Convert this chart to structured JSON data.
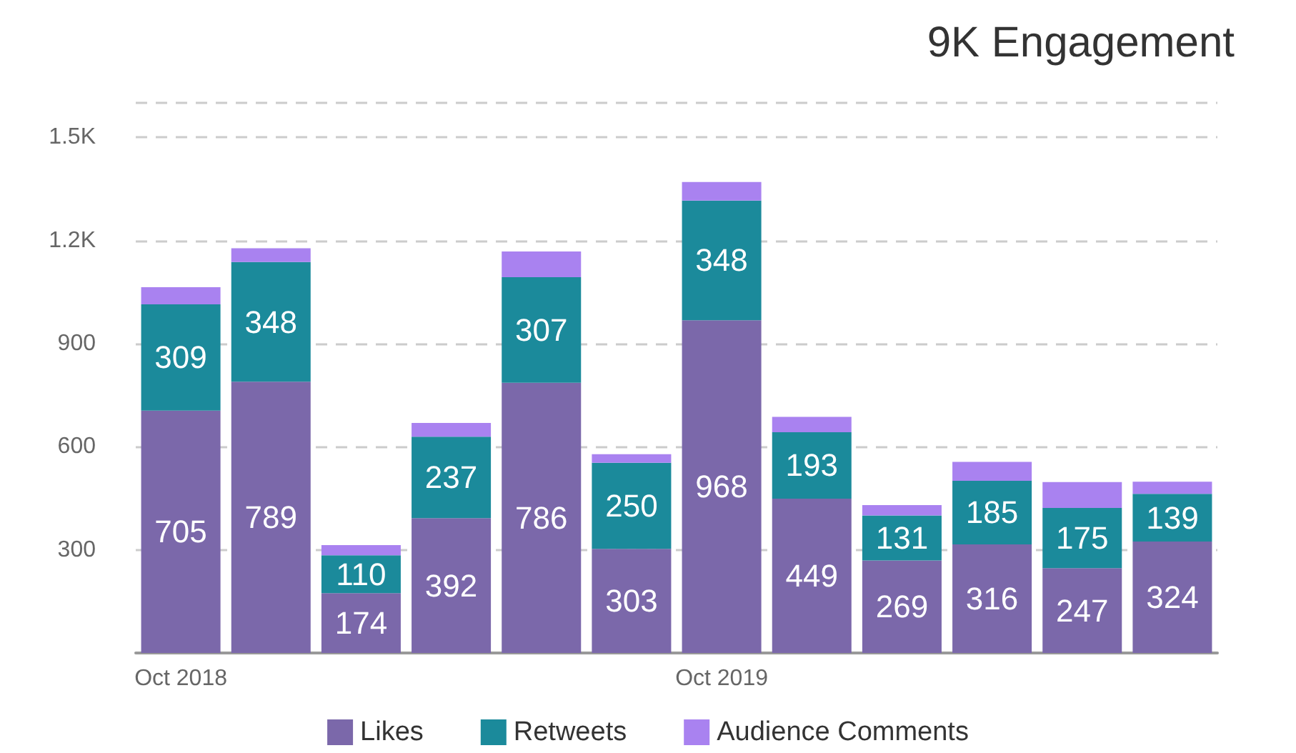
{
  "chart_data": {
    "type": "bar",
    "title": "9K Engagement",
    "stacked": true,
    "categories": [
      "Oct 2018",
      null,
      null,
      null,
      null,
      null,
      "Oct 2019",
      null,
      null,
      null,
      null,
      null
    ],
    "series": [
      {
        "name": "Likes",
        "color": "#7b68aa",
        "values": [
          705,
          789,
          174,
          392,
          786,
          303,
          968,
          449,
          269,
          316,
          247,
          324
        ],
        "value_labels": [
          "705",
          "789",
          "174",
          "392",
          "786",
          "303",
          "968",
          "449",
          "269",
          "316",
          "247",
          "324"
        ]
      },
      {
        "name": "Retweets",
        "color": "#1b8a9b",
        "values": [
          309,
          348,
          110,
          237,
          307,
          250,
          348,
          193,
          131,
          185,
          175,
          139
        ],
        "value_labels": [
          "309",
          "348",
          "110",
          "237",
          "307",
          "250",
          "348",
          "193",
          "131",
          "185",
          "175",
          "139"
        ]
      },
      {
        "name": "Audience Comments",
        "color": "#a982f0",
        "values": [
          50,
          40,
          30,
          40,
          75,
          25,
          54,
          45,
          30,
          55,
          75,
          35
        ]
      }
    ],
    "ylim": [
      0,
      1600
    ],
    "yticks": [
      {
        "value": 300,
        "label": "300"
      },
      {
        "value": 600,
        "label": "600"
      },
      {
        "value": 900,
        "label": "900"
      },
      {
        "value": 1200,
        "label": "1.2K"
      },
      {
        "value": 1500,
        "label": "1.5K"
      }
    ],
    "grid": "y",
    "legend": "bottom"
  }
}
